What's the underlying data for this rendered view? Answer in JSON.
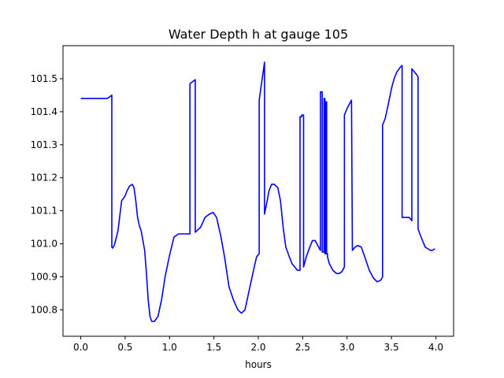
{
  "chart_data": {
    "type": "line",
    "title": "Water Depth h at gauge 105",
    "xlabel": "hours",
    "ylabel": "",
    "xlim": [
      -0.2,
      4.2
    ],
    "ylim": [
      100.72,
      101.6
    ],
    "xticks": [
      0.0,
      0.5,
      1.0,
      1.5,
      2.0,
      2.5,
      3.0,
      3.5,
      4.0
    ],
    "xtick_labels": [
      "0.0",
      "0.5",
      "1.0",
      "1.5",
      "2.0",
      "2.5",
      "3.0",
      "3.5",
      "4.0"
    ],
    "yticks": [
      100.8,
      100.9,
      101.0,
      101.1,
      101.2,
      101.3,
      101.4,
      101.5
    ],
    "ytick_labels": [
      "100.8",
      "100.9",
      "101.0",
      "101.1",
      "101.2",
      "101.3",
      "101.4",
      "101.5"
    ],
    "grid": false,
    "series": [
      {
        "color": "#0000ff",
        "x": [
          0.0,
          0.3,
          0.35,
          0.35,
          0.36,
          0.38,
          0.42,
          0.46,
          0.5,
          0.52,
          0.55,
          0.58,
          0.6,
          0.62,
          0.64,
          0.66,
          0.68,
          0.72,
          0.74,
          0.76,
          0.78,
          0.8,
          0.83,
          0.87,
          0.91,
          0.95,
          1.0,
          1.05,
          1.1,
          1.15,
          1.2,
          1.23,
          1.23,
          1.29,
          1.29,
          1.35,
          1.4,
          1.45,
          1.49,
          1.53,
          1.58,
          1.62,
          1.67,
          1.72,
          1.77,
          1.81,
          1.85,
          1.89,
          1.93,
          1.98,
          2.01,
          2.01,
          2.07,
          2.07,
          2.1,
          2.12,
          2.15,
          2.18,
          2.22,
          2.25,
          2.28,
          2.31,
          2.35,
          2.38,
          2.41,
          2.44,
          2.47,
          2.47,
          2.49,
          2.49,
          2.51,
          2.51,
          2.54,
          2.58,
          2.61,
          2.64,
          2.66,
          2.68,
          2.7,
          2.7,
          2.72,
          2.72,
          2.74,
          2.74,
          2.75,
          2.75,
          2.76,
          2.76,
          2.77,
          2.77,
          2.78,
          2.78,
          2.8,
          2.84,
          2.88,
          2.91,
          2.94,
          2.97,
          2.97,
          3.0,
          3.05,
          3.06,
          3.09,
          3.12,
          3.16,
          3.2,
          3.25,
          3.3,
          3.34,
          3.38,
          3.4,
          3.4,
          3.43,
          3.47,
          3.5,
          3.53,
          3.56,
          3.6,
          3.62,
          3.62,
          3.66,
          3.7,
          3.73,
          3.73,
          3.76,
          3.79,
          3.8,
          3.8,
          3.82,
          3.85,
          3.88,
          3.91,
          3.94,
          3.96,
          3.99
        ],
        "y": [
          101.44,
          101.44,
          101.45,
          100.99,
          100.987,
          100.997,
          101.04,
          101.13,
          101.145,
          101.16,
          101.175,
          101.18,
          101.17,
          101.13,
          101.08,
          101.055,
          101.04,
          100.98,
          100.91,
          100.83,
          100.78,
          100.765,
          100.765,
          100.78,
          100.83,
          100.9,
          100.965,
          101.02,
          101.03,
          101.03,
          101.03,
          101.03,
          101.485,
          101.497,
          101.035,
          101.05,
          101.08,
          101.09,
          101.095,
          101.08,
          101.02,
          100.96,
          100.87,
          100.83,
          100.8,
          100.79,
          100.8,
          100.85,
          100.9,
          100.96,
          100.97,
          101.435,
          101.55,
          101.09,
          101.13,
          101.16,
          101.18,
          101.18,
          101.17,
          101.13,
          101.05,
          100.99,
          100.96,
          100.94,
          100.93,
          100.92,
          100.92,
          101.385,
          101.385,
          101.39,
          101.39,
          100.93,
          100.96,
          100.99,
          101.01,
          101.01,
          101.0,
          100.99,
          100.98,
          101.46,
          101.46,
          100.975,
          100.975,
          101.44,
          101.44,
          100.97,
          100.97,
          101.43,
          101.43,
          100.97,
          100.97,
          100.96,
          100.94,
          100.92,
          100.91,
          100.91,
          100.915,
          100.93,
          101.39,
          101.41,
          101.435,
          100.98,
          100.99,
          100.995,
          100.99,
          100.96,
          100.92,
          100.895,
          100.885,
          100.89,
          100.9,
          101.36,
          101.38,
          101.43,
          101.47,
          101.5,
          101.52,
          101.535,
          101.54,
          101.08,
          101.08,
          101.08,
          101.07,
          101.53,
          101.52,
          101.51,
          101.505,
          101.045,
          101.03,
          101.01,
          100.99,
          100.985,
          100.98,
          100.98,
          100.985
        ]
      }
    ]
  }
}
